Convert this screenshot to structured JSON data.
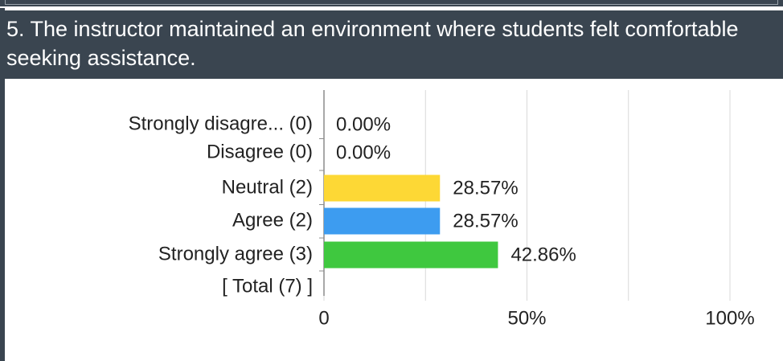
{
  "chart_data": {
    "type": "bar",
    "orientation": "horizontal",
    "title": "5. The instructor maintained an environment where students felt comfortable seeking assistance.",
    "categories": [
      "Strongly disagre... (0)",
      "Disagree (0)",
      "Neutral (2)",
      "Agree (2)",
      "Strongly agree (3)",
      "[ Total (7) ]"
    ],
    "values": [
      0,
      0,
      28.57,
      28.57,
      42.86,
      null
    ],
    "value_labels": [
      "0.00%",
      "0.00%",
      "28.57%",
      "28.57%",
      "42.86%",
      null
    ],
    "colors": [
      "#fdd835",
      "#fdd835",
      "#fdd835",
      "#3d9cf0",
      "#3fc83f",
      "#fdd835"
    ],
    "xlim": [
      0,
      100
    ],
    "xticks": [
      0,
      {
        "value": 50,
        "label": "50%"
      },
      {
        "value": 100,
        "label": "100%"
      }
    ],
    "xgrid": [
      0,
      25,
      50,
      75,
      100
    ],
    "grid": true
  }
}
